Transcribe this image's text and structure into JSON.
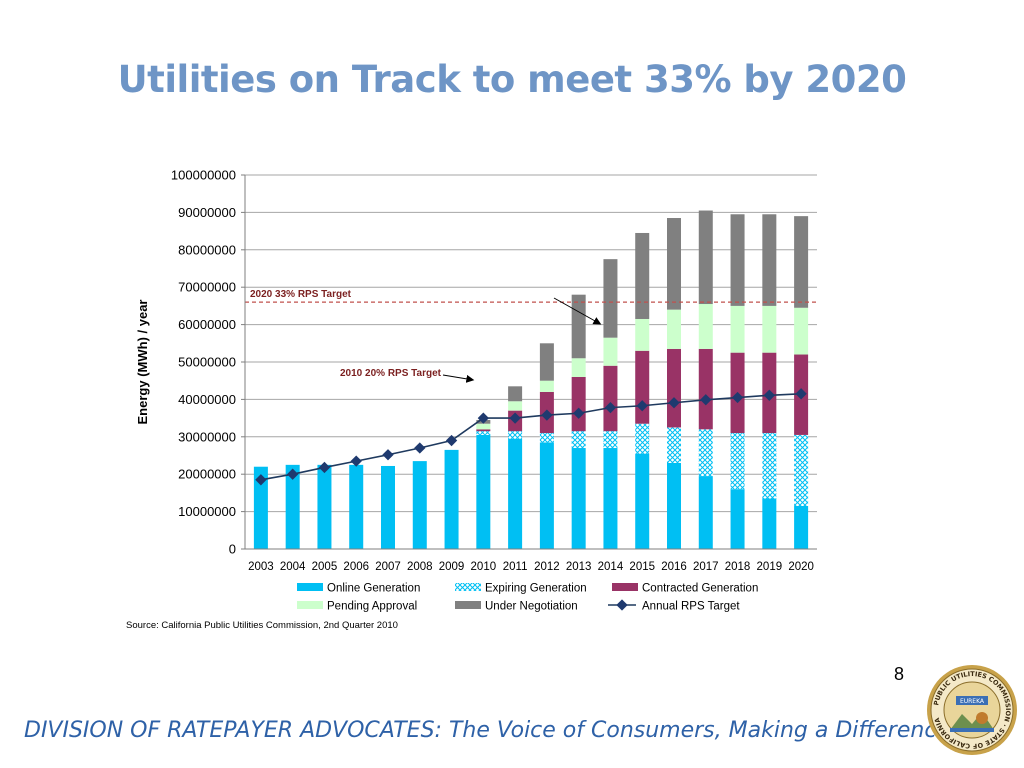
{
  "slide": {
    "title": "Utilities on Track to meet 33% by 2020",
    "page_number": "8",
    "footer": "DIVISION OF RATEPAYER ADVOCATES: The Voice of Consumers, Making a Difference!",
    "seal_text": "PUBLIC UTILITIES COMMISSION · STATE OF CALIFORNIA",
    "seal_banner": "EUREKA"
  },
  "colors": {
    "title": "#6e95c6",
    "footer": "#2e61a7",
    "online": "#00bff3",
    "expiring": "#a8e6f7",
    "contracted": "#993366",
    "pending": "#ccffcc",
    "negotiation": "#808080",
    "rps_line": "#1f3a5f",
    "target_line": "#c0504d"
  },
  "chart_data": {
    "type": "bar",
    "stacked": true,
    "ylabel": "Energy (MWh) / year",
    "ylim": [
      0,
      100000000
    ],
    "yticks": [
      "0",
      "10000000",
      "20000000",
      "30000000",
      "40000000",
      "50000000",
      "60000000",
      "70000000",
      "80000000",
      "90000000",
      "100000000"
    ],
    "grid": true,
    "legend_position": "bottom",
    "source": "Source: California Public Utilities Commission, 2nd Quarter 2010",
    "categories": [
      "2003",
      "2004",
      "2005",
      "2006",
      "2007",
      "2008",
      "2009",
      "2010",
      "2011",
      "2012",
      "2013",
      "2014",
      "2015",
      "2016",
      "2017",
      "2018",
      "2019",
      "2020"
    ],
    "series": [
      {
        "name": "Online Generation",
        "kind": "bar",
        "values": [
          22000000,
          22500000,
          22500000,
          22500000,
          22200000,
          23500000,
          26500000,
          30500000,
          29500000,
          28500000,
          27000000,
          27000000,
          25500000,
          23000000,
          19500000,
          16000000,
          13500000,
          11500000
        ]
      },
      {
        "name": "Expiring Generation",
        "kind": "bar",
        "values": [
          0,
          0,
          0,
          0,
          0,
          0,
          0,
          1000000,
          2000000,
          2500000,
          4500000,
          4500000,
          8000000,
          9500000,
          12500000,
          15000000,
          17500000,
          19000000
        ]
      },
      {
        "name": "Contracted Generation",
        "kind": "bar",
        "values": [
          0,
          0,
          0,
          0,
          0,
          0,
          0,
          500000,
          5500000,
          11000000,
          14500000,
          17500000,
          19500000,
          21000000,
          21500000,
          21500000,
          21500000,
          21500000
        ]
      },
      {
        "name": "Pending Approval",
        "kind": "bar",
        "values": [
          0,
          0,
          0,
          0,
          0,
          0,
          0,
          1500000,
          2500000,
          3000000,
          5000000,
          7500000,
          8500000,
          10500000,
          12000000,
          12500000,
          12500000,
          12500000
        ]
      },
      {
        "name": "Under Negotiation",
        "kind": "bar",
        "values": [
          0,
          0,
          0,
          0,
          0,
          0,
          0,
          1000000,
          4000000,
          10000000,
          17000000,
          21000000,
          23000000,
          24500000,
          25000000,
          24500000,
          24500000,
          24500000
        ]
      },
      {
        "name": "Annual RPS Target",
        "kind": "line",
        "values": [
          18500000,
          20000000,
          21800000,
          23500000,
          25200000,
          27000000,
          29000000,
          35000000,
          35000000,
          35800000,
          36300000,
          37800000,
          38300000,
          39100000,
          39900000,
          40500000,
          41100000,
          41500000
        ]
      }
    ],
    "reference_lines": [
      {
        "label": "2020 33% RPS Target",
        "value": 66000000
      }
    ],
    "annotations": [
      {
        "text": "2010 20% RPS Target",
        "points_to_year": "2010"
      },
      {
        "text": "",
        "points_to_year": "2014",
        "note_arrow_for": "2020 33% RPS Target"
      }
    ]
  }
}
